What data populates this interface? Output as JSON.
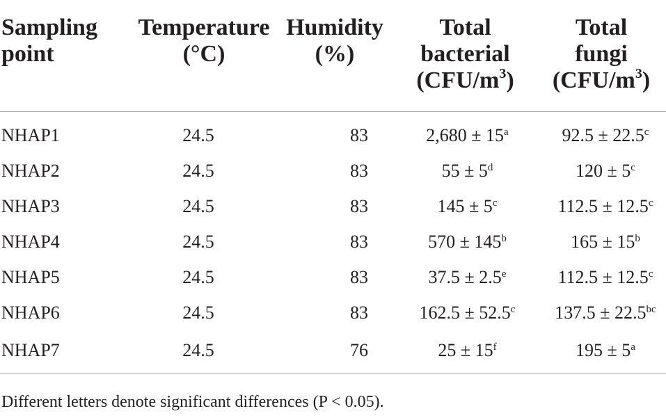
{
  "headers": {
    "sampling_point": [
      "Sampling",
      "point"
    ],
    "temperature": [
      "Temperature",
      "(°C)"
    ],
    "humidity": [
      "Humidity",
      "(%)"
    ],
    "total_bacterial": [
      "Total",
      "bacterial",
      "(CFU/m",
      "3",
      ")"
    ],
    "total_fungi": [
      "Total",
      "fungi",
      "(CFU/m",
      "3",
      ")"
    ]
  },
  "rows": [
    {
      "point": "NHAP1",
      "temperature": "24.5",
      "humidity": "83",
      "bacterial": "2,680 ± 15",
      "bacterial_sig": "a",
      "fungi": "92.5 ± 22.5",
      "fungi_sig": "c"
    },
    {
      "point": "NHAP2",
      "temperature": "24.5",
      "humidity": "83",
      "bacterial": "55 ± 5",
      "bacterial_sig": "d",
      "fungi": "120 ± 5",
      "fungi_sig": "c"
    },
    {
      "point": "NHAP3",
      "temperature": "24.5",
      "humidity": "83",
      "bacterial": "145 ± 5",
      "bacterial_sig": "c",
      "fungi": "112.5 ± 12.5",
      "fungi_sig": "c"
    },
    {
      "point": "NHAP4",
      "temperature": "24.5",
      "humidity": "83",
      "bacterial": "570 ± 145",
      "bacterial_sig": "b",
      "fungi": "165 ± 15",
      "fungi_sig": "b"
    },
    {
      "point": "NHAP5",
      "temperature": "24.5",
      "humidity": "83",
      "bacterial": "37.5 ± 2.5",
      "bacterial_sig": "e",
      "fungi": "112.5 ± 12.5",
      "fungi_sig": "c"
    },
    {
      "point": "NHAP6",
      "temperature": "24.5",
      "humidity": "83",
      "bacterial": "162.5 ± 52.5",
      "bacterial_sig": "c",
      "fungi": "137.5 ± 22.5",
      "fungi_sig": "bc"
    },
    {
      "point": "NHAP7",
      "temperature": "24.5",
      "humidity": "76",
      "bacterial": "25 ± 15",
      "bacterial_sig": "f",
      "fungi": "195 ± 5",
      "fungi_sig": "a"
    }
  ],
  "footnote": "Different letters denote significant differences (P < 0.05)."
}
